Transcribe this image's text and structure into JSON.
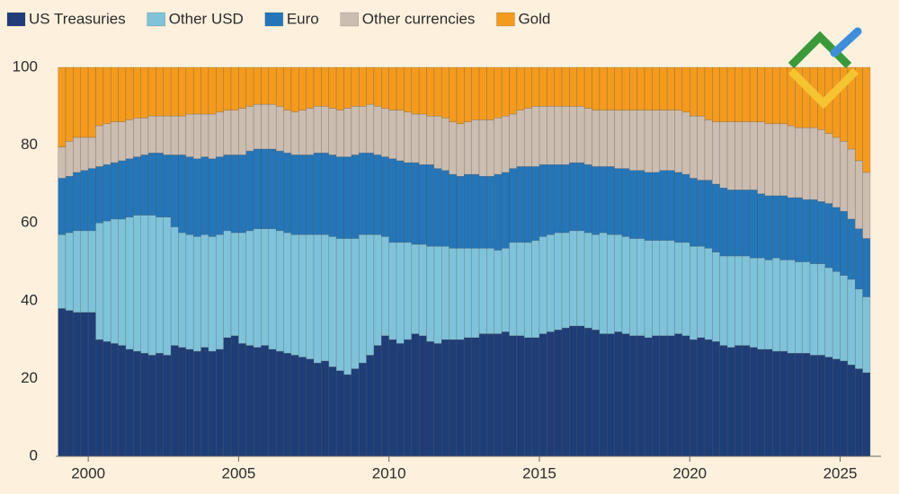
{
  "chart_data": {
    "type": "stacked_bar",
    "x": [
      1999.125,
      1999.375,
      1999.625,
      1999.875,
      2000.125,
      2000.375,
      2000.625,
      2000.875,
      2001.125,
      2001.375,
      2001.625,
      2001.875,
      2002.125,
      2002.375,
      2002.625,
      2002.875,
      2003.125,
      2003.375,
      2003.625,
      2003.875,
      2004.125,
      2004.375,
      2004.625,
      2004.875,
      2005.125,
      2005.375,
      2005.625,
      2005.875,
      2006.125,
      2006.375,
      2006.625,
      2006.875,
      2007.125,
      2007.375,
      2007.625,
      2007.875,
      2008.125,
      2008.375,
      2008.625,
      2008.875,
      2009.125,
      2009.375,
      2009.625,
      2009.875,
      2010.125,
      2010.375,
      2010.625,
      2010.875,
      2011.125,
      2011.375,
      2011.625,
      2011.875,
      2012.125,
      2012.375,
      2012.625,
      2012.875,
      2013.125,
      2013.375,
      2013.625,
      2013.875,
      2014.125,
      2014.375,
      2014.625,
      2014.875,
      2015.125,
      2015.375,
      2015.625,
      2015.875,
      2016.125,
      2016.375,
      2016.625,
      2016.875,
      2017.125,
      2017.375,
      2017.625,
      2017.875,
      2018.125,
      2018.375,
      2018.625,
      2018.875,
      2019.125,
      2019.375,
      2019.625,
      2019.875,
      2020.125,
      2020.375,
      2020.625,
      2020.875,
      2021.125,
      2021.375,
      2021.625,
      2021.875,
      2022.125,
      2022.375,
      2022.625,
      2022.875,
      2023.125,
      2023.375,
      2023.625,
      2023.875,
      2024.125,
      2024.375,
      2024.625,
      2024.875,
      2025.125,
      2025.375,
      2025.625,
      2025.875
    ],
    "series": [
      {
        "name": "US Treasuries",
        "color": "#1f3e78",
        "values": [
          38,
          37.5,
          37,
          37,
          37,
          30,
          29.5,
          29,
          28.5,
          27.5,
          27,
          26.5,
          26,
          26.5,
          26,
          28.5,
          28,
          27.5,
          27,
          28,
          27,
          27.5,
          30.5,
          31,
          29,
          28.5,
          28,
          28.5,
          27.5,
          27,
          26.5,
          26,
          25.5,
          25,
          24,
          24.5,
          23,
          22,
          21,
          22.5,
          24,
          26,
          28.5,
          31,
          30,
          29,
          30,
          31.5,
          31,
          29.5,
          29,
          30,
          30,
          30,
          30.5,
          30.5,
          31.5,
          31.5,
          31.5,
          32,
          31,
          31,
          30.5,
          30.5,
          31.5,
          32,
          32.5,
          33,
          33.5,
          33.5,
          33,
          32.5,
          31.5,
          31.5,
          32,
          31.5,
          31,
          31,
          30.5,
          31,
          31,
          31,
          31.5,
          31,
          30,
          30.5,
          30,
          29.5,
          28.5,
          28,
          28.5,
          28.5,
          28,
          27.5,
          27.5,
          27,
          27,
          26.5,
          26.5,
          26.5,
          26,
          26,
          25.5,
          25,
          24.5,
          23.5,
          22.5,
          21.5
        ]
      },
      {
        "name": "Other USD",
        "color": "#7fc3da",
        "values": [
          19,
          20,
          21,
          21,
          21,
          30,
          31,
          32,
          32.5,
          34,
          35,
          35.5,
          36,
          35,
          35.5,
          30.5,
          29.5,
          29.5,
          29.5,
          29,
          29.5,
          29.5,
          27.5,
          26.5,
          28.5,
          29.5,
          30.5,
          30,
          31,
          31,
          31,
          31,
          31.5,
          32,
          33,
          32.5,
          33.5,
          34,
          35,
          33.5,
          33,
          31,
          28.5,
          25.5,
          25,
          26,
          25,
          23,
          23.5,
          24.5,
          25,
          24,
          23.5,
          23.5,
          23,
          23,
          22,
          22,
          21.5,
          21.5,
          24,
          24,
          24.5,
          25,
          25,
          25,
          25,
          24.5,
          24.5,
          24.5,
          24.5,
          24.5,
          26,
          25.5,
          25,
          25,
          25,
          25,
          25,
          24.5,
          24.5,
          24.5,
          23.5,
          24,
          24,
          23.5,
          23.5,
          23,
          23,
          23.5,
          23,
          23,
          23,
          23.5,
          23,
          24,
          23.5,
          24,
          23.5,
          23.5,
          23.5,
          23.5,
          23,
          22.5,
          22,
          22,
          20.5,
          19.5
        ]
      },
      {
        "name": "Euro",
        "color": "#2476b9",
        "values": [
          14.5,
          14.5,
          15,
          15.5,
          16,
          14.5,
          14.5,
          14.5,
          15,
          15,
          15,
          15.5,
          16,
          16.5,
          16,
          18.5,
          20,
          20,
          20,
          20,
          20,
          20,
          19.5,
          20,
          20,
          20.5,
          20.5,
          20.5,
          20.5,
          20.5,
          20.5,
          20.5,
          20.5,
          20.5,
          21,
          21,
          21,
          21,
          21,
          21.5,
          21,
          21,
          20.5,
          20.5,
          21.5,
          21,
          20.5,
          21,
          20.5,
          21,
          20,
          19.5,
          19,
          18.5,
          19,
          19,
          18.5,
          18.5,
          19.5,
          19.5,
          19,
          19.5,
          19.5,
          19,
          18.5,
          18,
          17.5,
          17.5,
          17.5,
          17.5,
          17.5,
          17.5,
          17,
          17.5,
          17,
          17.5,
          17.5,
          17.5,
          17.5,
          17.5,
          18,
          18,
          18,
          17.5,
          17.5,
          17,
          17.5,
          17.5,
          17.5,
          17,
          17,
          17,
          17.5,
          16.5,
          16.5,
          16,
          16.5,
          16,
          16.5,
          16,
          16.5,
          16,
          16.5,
          16.5,
          16.5,
          15.5,
          15.5,
          15
        ]
      },
      {
        "name": "Other currencies",
        "color": "#cbbdb0",
        "values": [
          8,
          9,
          9,
          8.5,
          8,
          10.5,
          10.5,
          10.5,
          10,
          10,
          10,
          9.5,
          9.5,
          9.5,
          10,
          10,
          10,
          11,
          11.5,
          11,
          11.5,
          11.5,
          11.5,
          11.5,
          12,
          11.5,
          11.5,
          11.5,
          11.5,
          11.5,
          11,
          11,
          11.5,
          12,
          12,
          12,
          12,
          12,
          12.5,
          12.5,
          12,
          12.5,
          12.5,
          12.5,
          12.5,
          13,
          13,
          12.5,
          13,
          12.5,
          13.5,
          13.5,
          13.5,
          13.5,
          13.5,
          14,
          14.5,
          14.5,
          14.5,
          14.5,
          14,
          14.5,
          15,
          15.5,
          15,
          15,
          15,
          15,
          14.5,
          14.5,
          14.5,
          14.5,
          14.5,
          14.5,
          15,
          15,
          15.5,
          15.5,
          16,
          16,
          15.5,
          15.5,
          16,
          16,
          16,
          16.5,
          15.5,
          16,
          17,
          17.5,
          17.5,
          17.5,
          17.5,
          18.5,
          18.5,
          18.5,
          18.5,
          18.5,
          18,
          18.5,
          18.5,
          18.5,
          18,
          18,
          18,
          18,
          17.5,
          17
        ]
      },
      {
        "name": "Gold",
        "color": "#f49b1e",
        "values": [
          20.5,
          19,
          18,
          18,
          18,
          15,
          14.5,
          14,
          14,
          13.5,
          13,
          13,
          12.5,
          12.5,
          12.5,
          12.5,
          12.5,
          12,
          12,
          12,
          12,
          11.5,
          11,
          11,
          10.5,
          10,
          9.5,
          9.5,
          9.5,
          10,
          11,
          11.5,
          11,
          10.5,
          10,
          10,
          10.5,
          11,
          10.5,
          10,
          10,
          9.5,
          10,
          10.5,
          11,
          11,
          11.5,
          12,
          12,
          12.5,
          12.5,
          13,
          14,
          14.5,
          14,
          13.5,
          13.5,
          13.5,
          13,
          12.5,
          12,
          11,
          10.5,
          10,
          10,
          10,
          10,
          10,
          10,
          10,
          10.5,
          11,
          11,
          11,
          11,
          11,
          11,
          11,
          11,
          11,
          11,
          11,
          11,
          11.5,
          12.5,
          12.5,
          13.5,
          14,
          14,
          14,
          14,
          14,
          14,
          14,
          14.5,
          14.5,
          14.5,
          15,
          15.5,
          15.5,
          15.5,
          16,
          17,
          18,
          19,
          21,
          24,
          27
        ]
      }
    ],
    "xlim": [
      1998.98,
      2026.33
    ],
    "xticks": [
      2000,
      2005,
      2010,
      2015,
      2020,
      2025
    ],
    "ylim": [
      0,
      100
    ],
    "yticks": [
      0,
      20,
      40,
      60,
      80,
      100
    ],
    "grid": false,
    "legend": "top"
  }
}
